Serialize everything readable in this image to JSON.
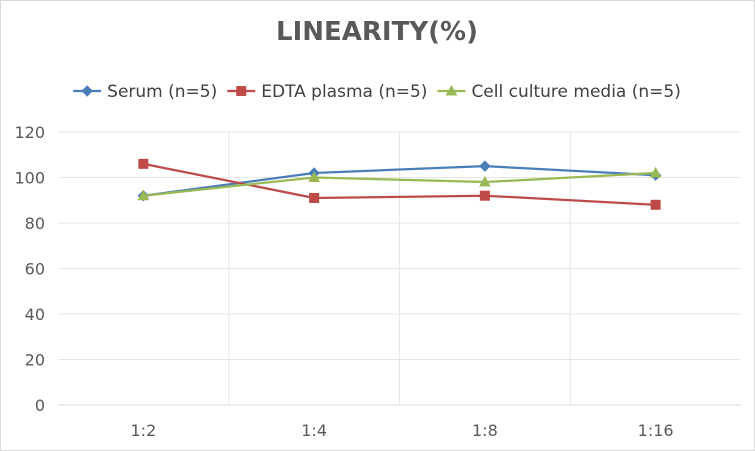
{
  "chart_data": {
    "type": "line",
    "title": "LINEARITY(%)",
    "xlabel": "",
    "ylabel": "",
    "categories": [
      "1:2",
      "1:4",
      "1:8",
      "1:16"
    ],
    "ylim": [
      0,
      120
    ],
    "yticks": [
      0,
      20,
      40,
      60,
      80,
      100,
      120
    ],
    "yticks_labels": [
      "0",
      "20",
      "40",
      "60",
      "80",
      "100",
      "120"
    ],
    "grid": true,
    "legend_position": "top",
    "series": [
      {
        "name": "Serum (n=5)",
        "values": [
          92,
          102,
          105,
          101
        ],
        "color": "#4a7ebb",
        "marker": "diamond"
      },
      {
        "name": "EDTA plasma (n=5)",
        "values": [
          106,
          91,
          92,
          88
        ],
        "color": "#be4b48",
        "marker": "square"
      },
      {
        "name": "Cell culture media (n=5)",
        "values": [
          92,
          100,
          98,
          102
        ],
        "color": "#98b954",
        "marker": "triangle"
      }
    ]
  }
}
